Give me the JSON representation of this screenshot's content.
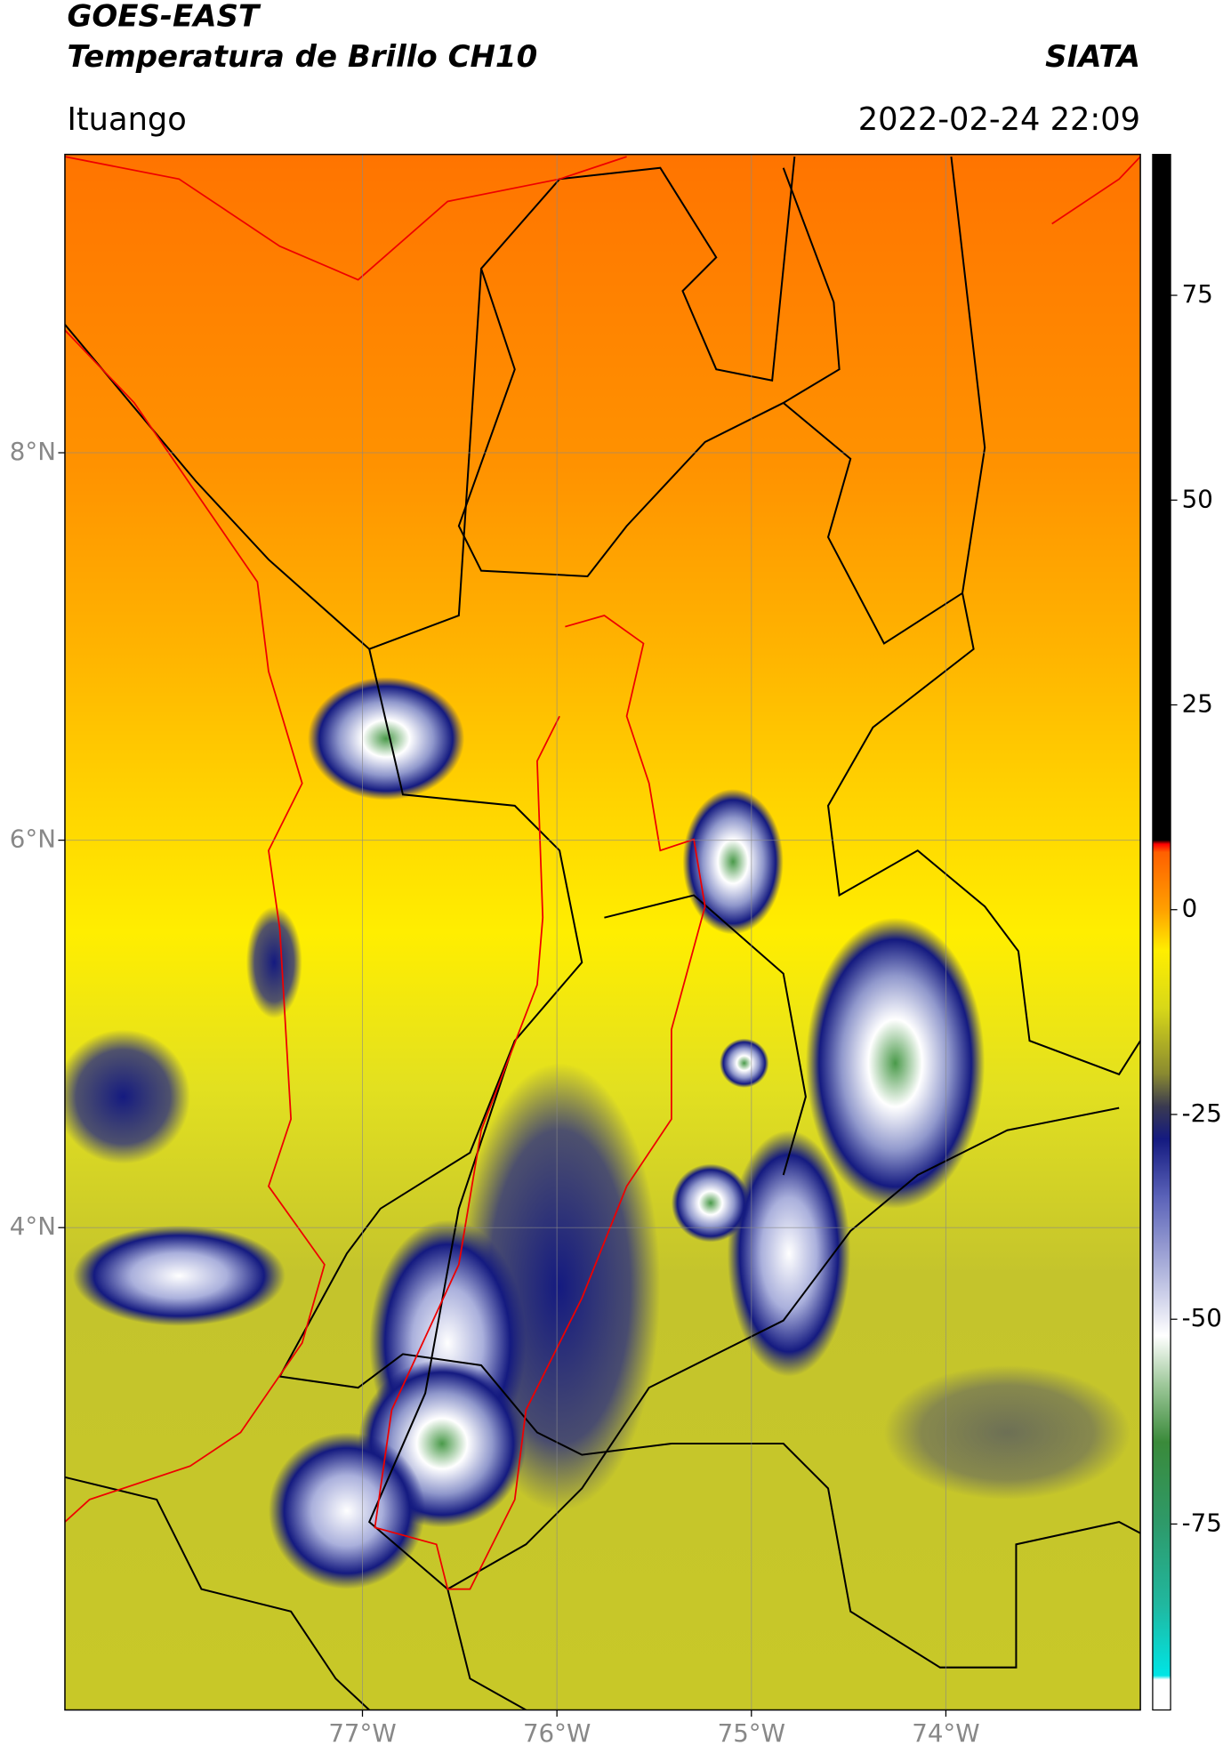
{
  "header": {
    "title": "GOES-EAST",
    "subtitle": "Temperatura de Brillo CH10",
    "brand": "SIATA",
    "location": "Ituango",
    "timestamp": "2022-02-24 22:09"
  },
  "map": {
    "latlim": [
      1.51,
      9.54
    ],
    "lonlim": [
      -78.53,
      -73.0
    ],
    "lat_ticks": [
      {
        "value": 8,
        "label": "8°N"
      },
      {
        "value": 6,
        "label": "6°N"
      },
      {
        "value": 4,
        "label": "4°N"
      }
    ],
    "lon_ticks": [
      {
        "value": -77,
        "label": "77°W"
      },
      {
        "value": -76,
        "label": "76°W"
      },
      {
        "value": -75,
        "label": "75°W"
      },
      {
        "value": -74,
        "label": "74°W"
      }
    ],
    "grid": true
  },
  "colorbar": {
    "lim": [
      -97.7,
      92.2
    ],
    "ticks": [
      75,
      50,
      25,
      0,
      -25,
      -50,
      -75
    ],
    "colormap": [
      [
        -97.7,
        "#ffffff"
      ],
      [
        -94,
        "#ffffff"
      ],
      [
        -93.5,
        "#00e5e5"
      ],
      [
        -85,
        "#20b8a0"
      ],
      [
        -75,
        "#2e9a6a"
      ],
      [
        -65,
        "#3a8a3a"
      ],
      [
        -58,
        "#9ec89a"
      ],
      [
        -52,
        "#ffffff"
      ],
      [
        -45,
        "#b8bce0"
      ],
      [
        -35,
        "#5a62b8"
      ],
      [
        -28,
        "#141a80"
      ],
      [
        -24,
        "#3a3a50"
      ],
      [
        -20,
        "#8a8a30"
      ],
      [
        -12,
        "#d8d818"
      ],
      [
        -5,
        "#ffee00"
      ],
      [
        0,
        "#ffa000"
      ],
      [
        7,
        "#ff6000"
      ],
      [
        8,
        "#ff0000"
      ],
      [
        8.5,
        "#000000"
      ],
      [
        92.2,
        "#000000"
      ]
    ]
  }
}
